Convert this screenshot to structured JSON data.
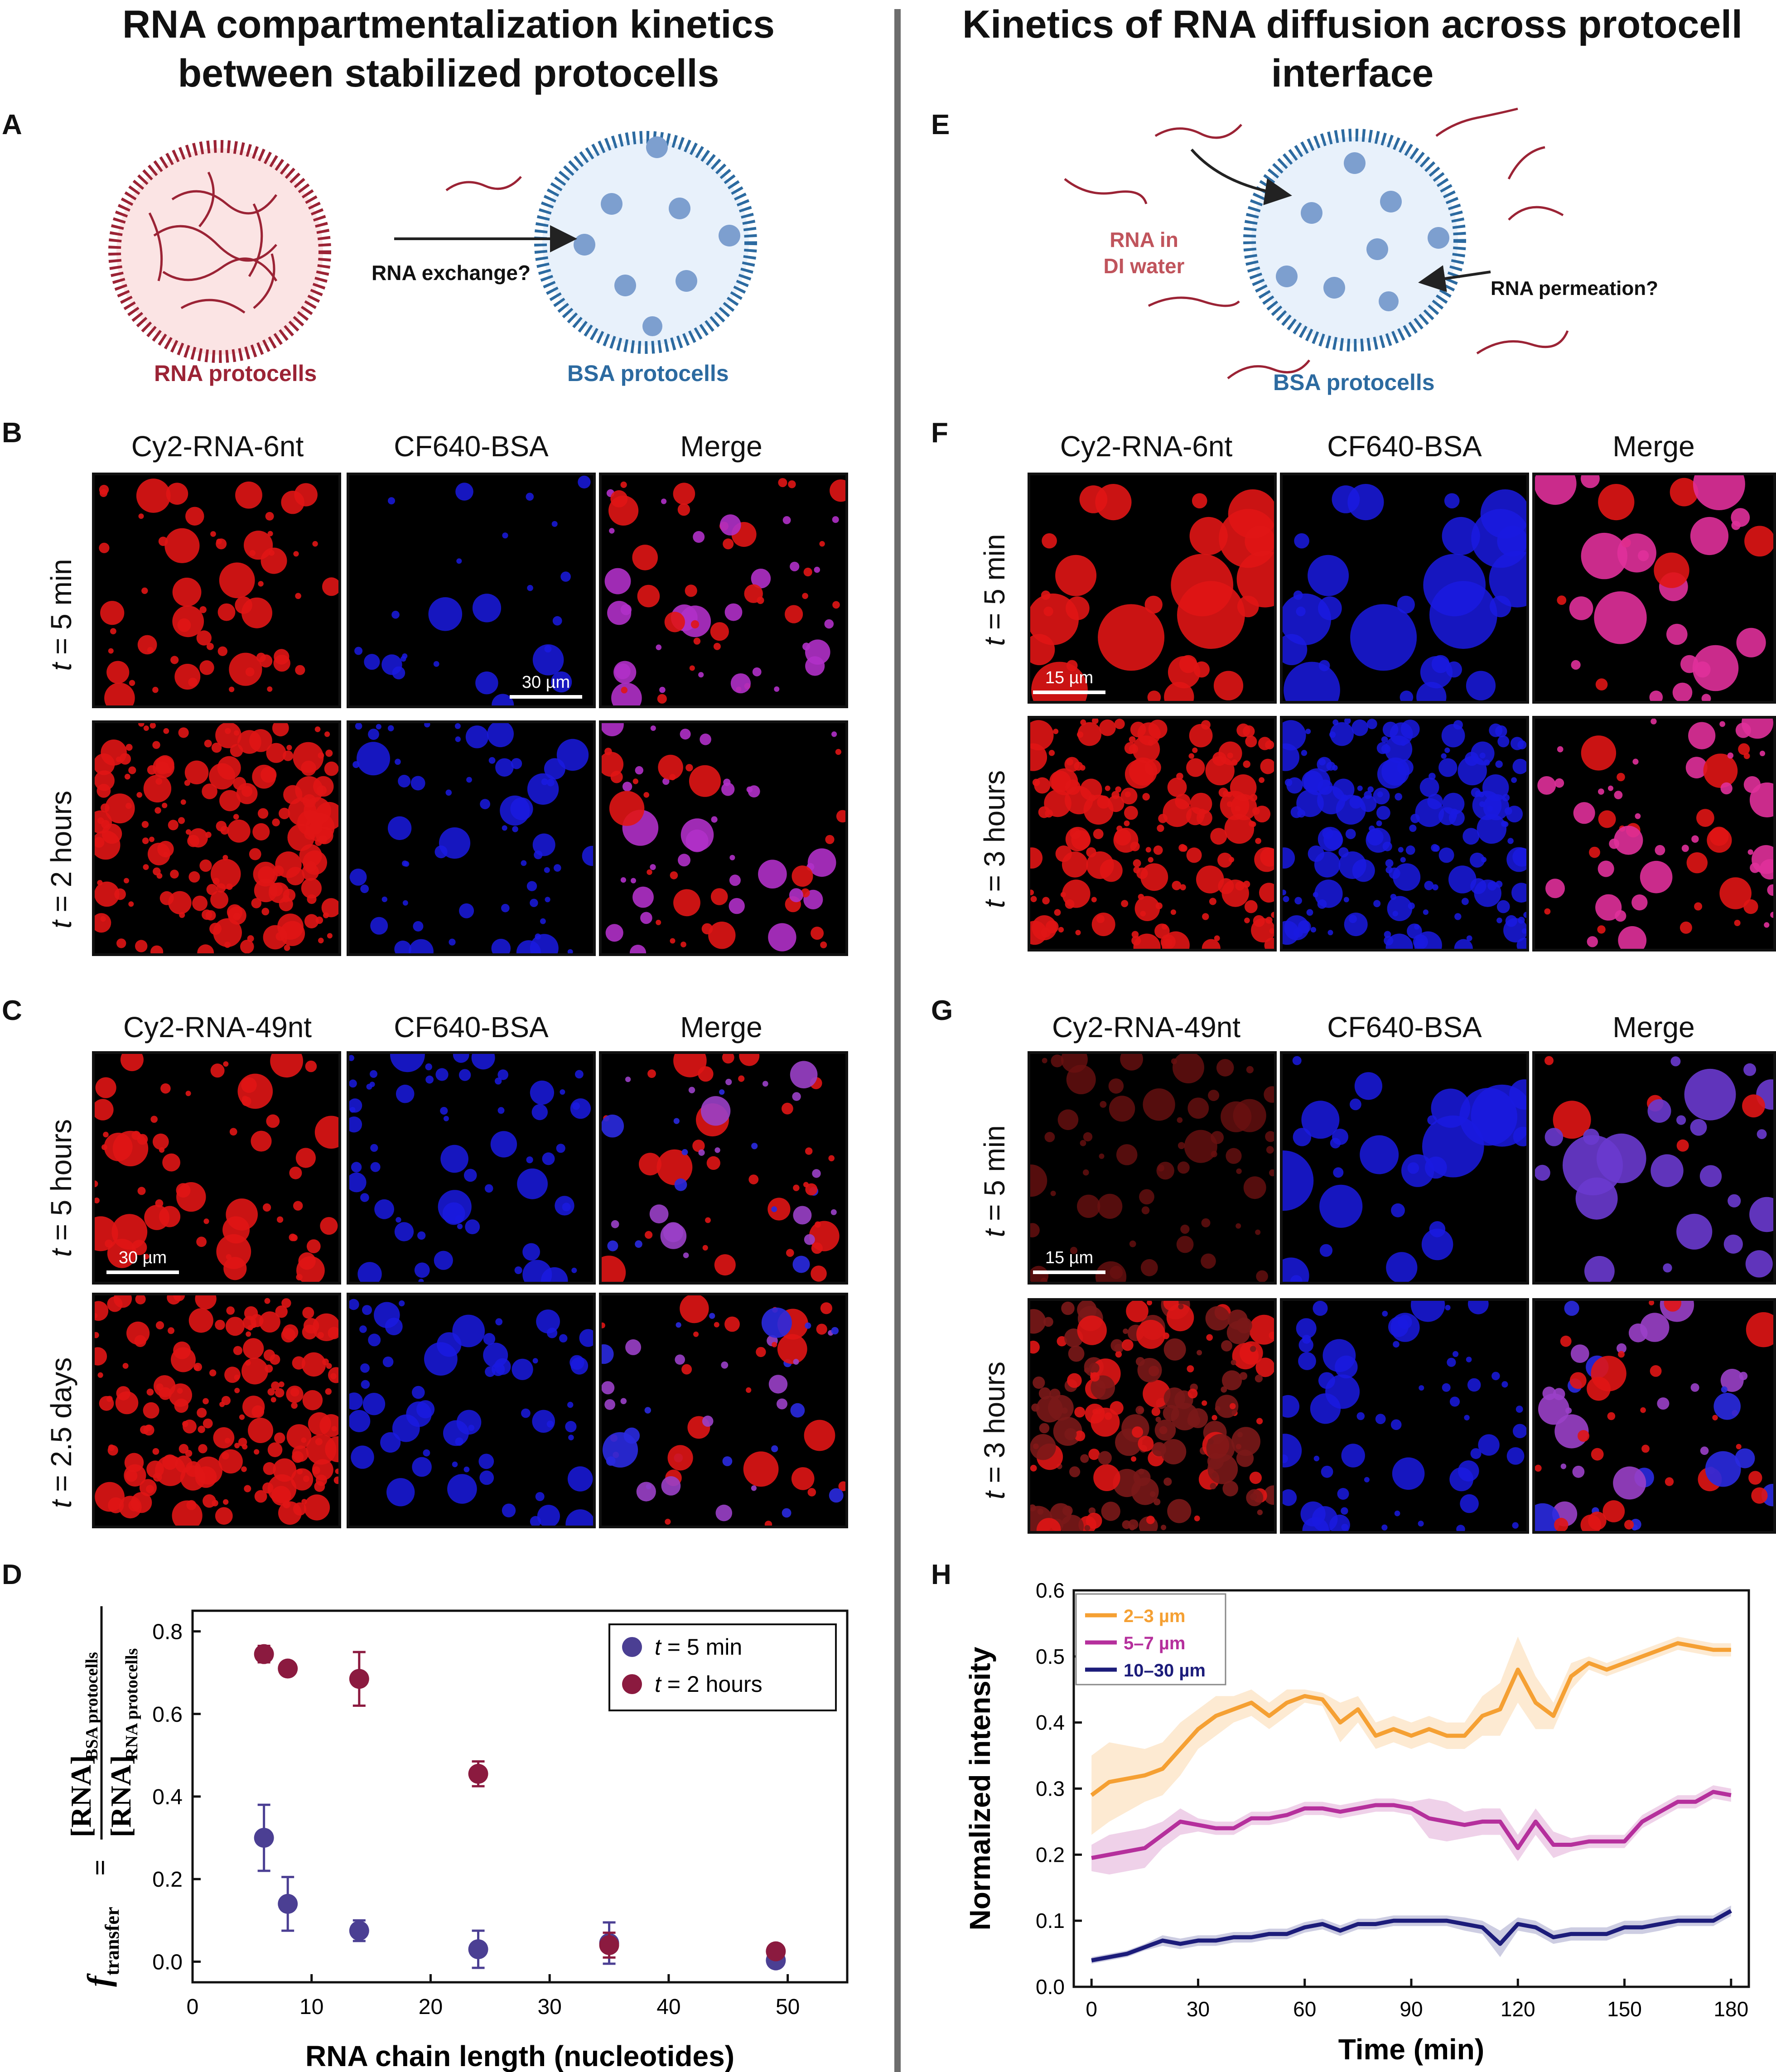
{
  "titles": {
    "left": [
      "RNA compartmentalization kinetics",
      "between stabilized protocells"
    ],
    "right": [
      "Kinetics of RNA diffusion across protocell",
      "interface"
    ]
  },
  "panel_labels": {
    "A": "A",
    "B": "B",
    "C": "C",
    "D": "D",
    "E": "E",
    "F": "F",
    "G": "G",
    "H": "H"
  },
  "schematic_A": {
    "rna_protocells": "RNA protocells",
    "bsa_protocells": "BSA protocells",
    "exchange": "RNA exchange?"
  },
  "schematic_E": {
    "rna_in": "RNA in",
    "di_water": "DI water",
    "permeation": "RNA permeation?",
    "bsa_protocells": "BSA protocells"
  },
  "grid_B": {
    "cols": [
      "Cy2-RNA-6nt",
      "CF640-BSA",
      "Merge"
    ],
    "rows": [
      {
        "t": "t",
        "rest": " = 5 min"
      },
      {
        "t": "t",
        "rest": " = 2 hours"
      }
    ],
    "scalebar": "30 µm"
  },
  "grid_C": {
    "cols": [
      "Cy2-RNA-49nt",
      "CF640-BSA",
      "Merge"
    ],
    "rows": [
      {
        "t": "t",
        "rest": " = 5 hours"
      },
      {
        "t": "t",
        "rest": " = 2.5 days"
      }
    ],
    "scalebar": "30 µm"
  },
  "grid_F": {
    "cols": [
      "Cy2-RNA-6nt",
      "CF640-BSA",
      "Merge"
    ],
    "rows": [
      {
        "t": "t",
        "rest": " = 5 min"
      },
      {
        "t": "t",
        "rest": " = 3 hours"
      }
    ],
    "scalebar": "15 µm"
  },
  "grid_G": {
    "cols": [
      "Cy2-RNA-49nt",
      "CF640-BSA",
      "Merge"
    ],
    "rows": [
      {
        "t": "t",
        "rest": " = 5 min"
      },
      {
        "t": "t",
        "rest": " = 3 hours"
      }
    ],
    "scalebar": "15 µm"
  },
  "colors": {
    "rna_red": "#9b2335",
    "bsa_blue": "#2c6aa0",
    "series_5min": "#4b3f93",
    "series_2h": "#8b1a3f",
    "orange": "#f5a033",
    "magenta": "#b52f9c",
    "navy": "#1c1c7a"
  },
  "chart_data": [
    {
      "type": "scatter",
      "xlabel": "RNA chain length (nucleotides)",
      "ylabel_parts": {
        "f": "f",
        "sub": "transfer",
        "eq": " = ",
        "num": "[RNA]",
        "num_sub": "BSA protocells",
        "den": "[RNA]",
        "den_sub": "RNA protocells"
      },
      "xlim": [
        0,
        55
      ],
      "ylim": [
        -0.05,
        0.85
      ],
      "xticks": [
        0,
        10,
        20,
        30,
        40,
        50
      ],
      "yticks": [
        0.0,
        0.2,
        0.4,
        0.6,
        0.8
      ],
      "ytick_labels": [
        "0.0",
        "0.2",
        "0.4",
        "0.6",
        "0.8"
      ],
      "legend_position": "top-right",
      "series": [
        {
          "name_t": "t",
          "name_rest": " = 5 min",
          "color": "#4b3f93",
          "points": [
            [
              6,
              0.3,
              0.08
            ],
            [
              8,
              0.14,
              0.065
            ],
            [
              14,
              0.075,
              0.025
            ],
            [
              24,
              0.03,
              0.045
            ],
            [
              35,
              0.045,
              0.05
            ],
            [
              49,
              0.003,
              0.005
            ]
          ]
        },
        {
          "name_t": "t",
          "name_rest": " = 2 hours",
          "color": "#8b1a3f",
          "points": [
            [
              6,
              0.745,
              0.02
            ],
            [
              8,
              0.71,
              0.015
            ],
            [
              14,
              0.685,
              0.065
            ],
            [
              24,
              0.455,
              0.03
            ],
            [
              35,
              0.04,
              0.03
            ],
            [
              49,
              0.025,
              0.01
            ]
          ]
        }
      ]
    },
    {
      "type": "line",
      "xlabel": "Time (min)",
      "ylabel": "Normalized intensity",
      "xlim": [
        -5,
        185
      ],
      "ylim": [
        0.0,
        0.6
      ],
      "xticks": [
        0,
        30,
        60,
        90,
        120,
        150,
        180
      ],
      "yticks": [
        0.0,
        0.1,
        0.2,
        0.3,
        0.4,
        0.5,
        0.6
      ],
      "ytick_labels": [
        "0.0",
        "0.1",
        "0.2",
        "0.3",
        "0.4",
        "0.5",
        "0.6"
      ],
      "legend_position": "top-left",
      "x": [
        0,
        5,
        10,
        15,
        20,
        25,
        30,
        35,
        40,
        45,
        50,
        55,
        60,
        65,
        70,
        75,
        80,
        85,
        90,
        95,
        100,
        105,
        110,
        115,
        120,
        125,
        130,
        135,
        140,
        145,
        150,
        155,
        160,
        165,
        170,
        175,
        180
      ],
      "series": [
        {
          "name": "2–3 µm",
          "color": "#f5a033",
          "values": [
            0.29,
            0.31,
            0.315,
            0.32,
            0.33,
            0.36,
            0.39,
            0.41,
            0.42,
            0.43,
            0.41,
            0.43,
            0.44,
            0.435,
            0.4,
            0.42,
            0.38,
            0.39,
            0.38,
            0.39,
            0.38,
            0.38,
            0.41,
            0.42,
            0.48,
            0.43,
            0.41,
            0.47,
            0.49,
            0.48,
            0.49,
            0.5,
            0.51,
            0.52,
            0.515,
            0.51,
            0.51
          ],
          "band": [
            0.06,
            0.06,
            0.05,
            0.04,
            0.04,
            0.04,
            0.03,
            0.03,
            0.02,
            0.02,
            0.02,
            0.02,
            0.01,
            0.01,
            0.03,
            0.02,
            0.02,
            0.02,
            0.02,
            0.02,
            0.02,
            0.02,
            0.03,
            0.04,
            0.05,
            0.04,
            0.02,
            0.02,
            0.01,
            0.01,
            0.01,
            0.01,
            0.01,
            0.01,
            0.01,
            0.01,
            0.01
          ]
        },
        {
          "name": "5–7  µm",
          "color": "#b52f9c",
          "values": [
            0.195,
            0.2,
            0.205,
            0.21,
            0.23,
            0.25,
            0.245,
            0.24,
            0.24,
            0.255,
            0.255,
            0.26,
            0.27,
            0.27,
            0.265,
            0.27,
            0.275,
            0.275,
            0.27,
            0.255,
            0.25,
            0.245,
            0.25,
            0.25,
            0.21,
            0.25,
            0.215,
            0.215,
            0.22,
            0.22,
            0.22,
            0.25,
            0.265,
            0.28,
            0.28,
            0.295,
            0.29
          ],
          "band": [
            0.02,
            0.03,
            0.03,
            0.03,
            0.02,
            0.02,
            0.01,
            0.01,
            0.01,
            0.01,
            0.01,
            0.01,
            0.01,
            0.01,
            0.01,
            0.01,
            0.01,
            0.01,
            0.01,
            0.03,
            0.03,
            0.02,
            0.02,
            0.02,
            0.02,
            0.02,
            0.02,
            0.01,
            0.01,
            0.01,
            0.01,
            0.01,
            0.01,
            0.01,
            0.01,
            0.01,
            0.01
          ]
        },
        {
          "name": "10–30  µm",
          "color": "#1c1c7a",
          "values": [
            0.04,
            0.045,
            0.05,
            0.06,
            0.07,
            0.065,
            0.07,
            0.07,
            0.075,
            0.075,
            0.08,
            0.08,
            0.09,
            0.095,
            0.085,
            0.095,
            0.095,
            0.1,
            0.1,
            0.1,
            0.1,
            0.095,
            0.09,
            0.065,
            0.095,
            0.09,
            0.075,
            0.08,
            0.08,
            0.08,
            0.09,
            0.09,
            0.095,
            0.1,
            0.1,
            0.1,
            0.115
          ],
          "band": [
            0.005,
            0.005,
            0.005,
            0.005,
            0.008,
            0.008,
            0.008,
            0.008,
            0.008,
            0.008,
            0.008,
            0.008,
            0.008,
            0.008,
            0.008,
            0.008,
            0.008,
            0.008,
            0.008,
            0.008,
            0.008,
            0.01,
            0.01,
            0.02,
            0.01,
            0.01,
            0.01,
            0.01,
            0.01,
            0.01,
            0.01,
            0.01,
            0.01,
            0.008,
            0.008,
            0.008,
            0.008
          ]
        }
      ]
    }
  ]
}
